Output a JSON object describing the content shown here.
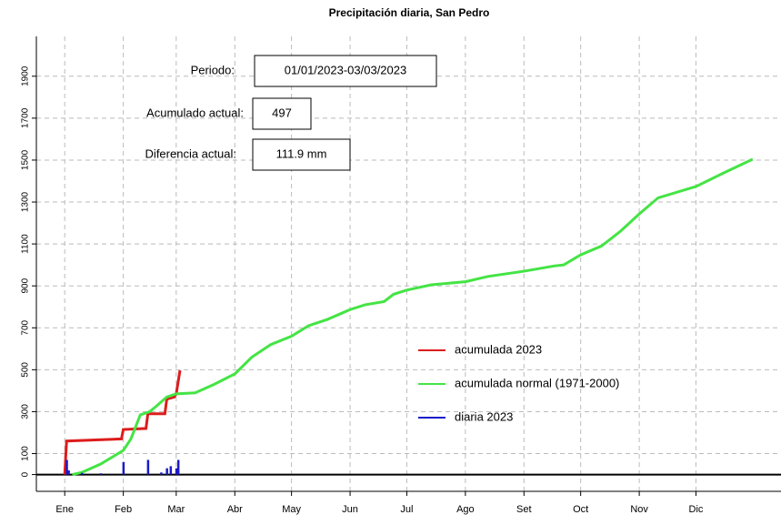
{
  "chart_data": {
    "type": "line",
    "title": "Precipitación diaria, San Pedro",
    "xlim": [
      -14,
      380
    ],
    "xticks": [
      {
        "value": 1,
        "label": "Ene"
      },
      {
        "value": 32,
        "label": "Feb"
      },
      {
        "value": 60,
        "label": "Mar"
      },
      {
        "value": 91,
        "label": "Abr"
      },
      {
        "value": 121,
        "label": "May"
      },
      {
        "value": 152,
        "label": "Jun"
      },
      {
        "value": 182,
        "label": "Jul"
      },
      {
        "value": 213,
        "label": "Ago"
      },
      {
        "value": 244,
        "label": "Set"
      },
      {
        "value": 274,
        "label": "Oct"
      },
      {
        "value": 305,
        "label": "Nov"
      },
      {
        "value": 335,
        "label": "Dic"
      }
    ],
    "ylim": [
      -80,
      2090
    ],
    "yticks": [
      0,
      100,
      300,
      500,
      700,
      900,
      1100,
      1300,
      1500,
      1700,
      1900
    ],
    "grid": true,
    "series": [
      {
        "name": "acumulada 2023",
        "color": "#dd1c1c",
        "type": "line",
        "x": [
          1,
          2,
          31,
          32,
          44,
          45,
          54,
          55,
          59,
          60,
          62
        ],
        "values": [
          0,
          160,
          170,
          215,
          220,
          290,
          290,
          360,
          370,
          385,
          497
        ]
      },
      {
        "name": "acumulada normal (1971-2000)",
        "color": "#44e444",
        "type": "line",
        "x": [
          5,
          10,
          20,
          32,
          36,
          41,
          46,
          50,
          55,
          60,
          70,
          80,
          91,
          100,
          110,
          121,
          130,
          140,
          152,
          160,
          170,
          175,
          182,
          195,
          213,
          225,
          244,
          260,
          265,
          274,
          285,
          295,
          305,
          315,
          335,
          350,
          365
        ],
        "values": [
          0,
          10,
          50,
          115,
          170,
          285,
          300,
          330,
          370,
          385,
          390,
          430,
          480,
          560,
          620,
          660,
          710,
          740,
          787,
          810,
          825,
          860,
          880,
          905,
          920,
          945,
          970,
          995,
          1000,
          1048,
          1090,
          1160,
          1243,
          1320,
          1374,
          1440,
          1504
        ]
      },
      {
        "name": "diaria 2023",
        "color": "#1a1ac8",
        "type": "bar",
        "x": [
          2,
          3,
          10,
          20,
          32,
          45,
          52,
          55,
          57,
          60,
          61
        ],
        "values": [
          70,
          20,
          8,
          6,
          60,
          70,
          10,
          30,
          40,
          30,
          70
        ]
      }
    ],
    "annotations": [
      {
        "label": "Periodo:",
        "value": "01/01/2023-03/03/2023"
      },
      {
        "label": "Acumulado actual:",
        "value": "497"
      },
      {
        "label": "Diferencia actual:",
        "value": "111.9 mm"
      }
    ]
  }
}
